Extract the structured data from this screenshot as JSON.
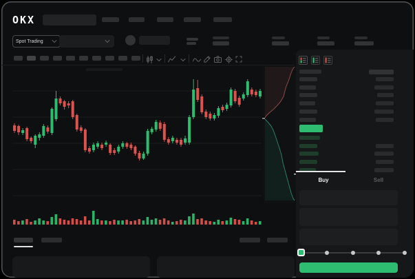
{
  "header": {
    "logo": "OKX"
  },
  "ticker": {
    "market_type": "Spot Trading"
  },
  "trade": {
    "buy_tab": "Buy",
    "sell_tab": "Sell",
    "slider_ticks": 5
  },
  "colors": {
    "up_green": "#2ebd70",
    "down_red": "#dc524e",
    "buy_button": "#2ebd70",
    "last_price_row": "#2ebd70",
    "bid_row_green": "#1e3d2a",
    "depth_ask_line": "#8a4a48",
    "depth_ask_fill": "rgba(200,90,85,0.10)",
    "depth_bid_line": "#2f7c64",
    "depth_bid_fill": "rgba(46,170,125,0.10)",
    "gridline": "#1a1c1d",
    "window_bg": "#0e0f10",
    "panel_bg": "#151718"
  },
  "icons": {
    "header": [
      "search-input"
    ],
    "toolbar": [
      "candles-icon",
      "chevron-down-icon",
      "indicator-icon",
      "chevron-down-icon",
      "line-tool-icon",
      "pencil-icon",
      "camera-icon",
      "settings-icon",
      "fullscreen-icon"
    ],
    "orderbook_views": [
      "book-both-sides-icon",
      "book-bids-only-icon",
      "book-asks-only-icon"
    ],
    "market_dropdown": "chevron-down-icon"
  },
  "chart_data": {
    "type": "candlestick",
    "value_scale": "relative-unlabeled",
    "ylim": [
      60,
      210
    ],
    "grid": true,
    "gridline_values": [
      16,
      54,
      92,
      130,
      168
    ],
    "candles": [
      [
        118,
        121,
        107,
        110
      ],
      [
        117,
        119,
        104,
        108
      ],
      [
        107,
        114,
        104,
        111
      ],
      [
        114,
        116,
        95,
        98
      ],
      [
        100,
        102,
        92,
        95
      ],
      [
        90,
        105,
        85,
        103
      ],
      [
        100,
        108,
        96,
        105
      ],
      [
        103,
        120,
        100,
        117
      ],
      [
        115,
        118,
        106,
        109
      ],
      [
        107,
        144,
        104,
        142
      ],
      [
        127,
        168,
        124,
        157
      ],
      [
        157,
        160,
        147,
        150
      ],
      [
        153,
        155,
        141,
        145
      ],
      [
        150,
        153,
        143,
        147
      ],
      [
        153,
        155,
        127,
        130
      ],
      [
        133,
        135,
        109,
        112
      ],
      [
        115,
        118,
        107,
        110
      ],
      [
        112,
        114,
        79,
        82
      ],
      [
        85,
        88,
        77,
        80
      ],
      [
        82,
        93,
        79,
        90
      ],
      [
        87,
        95,
        84,
        92
      ],
      [
        90,
        93,
        82,
        85
      ],
      [
        90,
        96,
        87,
        93
      ],
      [
        90,
        92,
        75,
        78
      ],
      [
        82,
        85,
        75,
        78
      ],
      [
        80,
        90,
        77,
        87
      ],
      [
        87,
        95,
        84,
        92
      ],
      [
        92,
        94,
        84,
        87
      ],
      [
        90,
        93,
        82,
        85
      ],
      [
        87,
        89,
        74,
        77
      ],
      [
        78,
        81,
        67,
        70
      ],
      [
        70,
        80,
        68,
        77
      ],
      [
        77,
        113,
        74,
        110
      ],
      [
        108,
        116,
        105,
        113
      ],
      [
        112,
        126,
        109,
        123
      ],
      [
        122,
        125,
        110,
        113
      ],
      [
        120,
        123,
        94,
        97
      ],
      [
        98,
        101,
        90,
        93
      ],
      [
        95,
        103,
        92,
        100
      ],
      [
        97,
        100,
        90,
        93
      ],
      [
        97,
        100,
        87,
        90
      ],
      [
        93,
        103,
        90,
        99
      ],
      [
        93,
        133,
        90,
        130
      ],
      [
        130,
        185,
        127,
        170
      ],
      [
        172,
        184,
        152,
        155
      ],
      [
        160,
        163,
        134,
        137
      ],
      [
        138,
        141,
        127,
        130
      ],
      [
        135,
        138,
        125,
        128
      ],
      [
        128,
        136,
        125,
        133
      ],
      [
        132,
        146,
        129,
        143
      ],
      [
        145,
        148,
        137,
        140
      ],
      [
        142,
        151,
        139,
        148
      ],
      [
        147,
        173,
        144,
        170
      ],
      [
        168,
        171,
        150,
        153
      ],
      [
        158,
        161,
        145,
        148
      ],
      [
        157,
        166,
        154,
        163
      ],
      [
        162,
        185,
        159,
        182
      ],
      [
        170,
        173,
        160,
        163
      ],
      [
        167,
        170,
        159,
        162
      ],
      [
        160,
        171,
        157,
        168
      ]
    ],
    "volumes": [
      7,
      5,
      6,
      8,
      4,
      6,
      9,
      6,
      5,
      11,
      15,
      9,
      7,
      6,
      9,
      8,
      6,
      12,
      6,
      20,
      8,
      6,
      6,
      5,
      7,
      6,
      6,
      7,
      5,
      6,
      8,
      6,
      11,
      7,
      9,
      7,
      9,
      6,
      4,
      5,
      7,
      6,
      12,
      16,
      8,
      9,
      6,
      5,
      4,
      7,
      5,
      6,
      10,
      8,
      7,
      5,
      9,
      6,
      4,
      5
    ],
    "depth_profile": {
      "asks_points": [
        [
          428,
          97
        ],
        [
          425,
          101
        ],
        [
          423,
          106
        ],
        [
          421,
          112
        ],
        [
          419,
          118
        ],
        [
          416,
          125
        ],
        [
          414,
          132
        ],
        [
          412,
          140
        ],
        [
          408,
          147
        ],
        [
          403,
          153
        ],
        [
          397,
          159
        ],
        [
          391,
          164
        ],
        [
          387,
          168
        ],
        [
          385,
          171
        ]
      ],
      "bids_points": [
        [
          385,
          173
        ],
        [
          389,
          177
        ],
        [
          394,
          183
        ],
        [
          397,
          189
        ],
        [
          400,
          197
        ],
        [
          403,
          206
        ],
        [
          406,
          215
        ],
        [
          409,
          225
        ],
        [
          411,
          236
        ],
        [
          414,
          247
        ],
        [
          417,
          258
        ],
        [
          420,
          269
        ],
        [
          423,
          280
        ],
        [
          426,
          288
        ],
        [
          428,
          291
        ]
      ]
    }
  },
  "orderbook": {
    "header_bar_widths": {
      "price": 32,
      "amount": 36
    },
    "asks": [
      [
        26,
        26
      ],
      [
        24,
        28
      ],
      [
        26,
        24
      ],
      [
        23,
        26
      ],
      [
        26,
        28
      ],
      [
        24,
        26
      ]
    ],
    "last_price_bar_width": 34,
    "bids": [
      [
        30,
        0
      ],
      [
        26,
        26
      ],
      [
        28,
        28
      ],
      [
        26,
        26
      ],
      [
        24,
        28
      ]
    ]
  }
}
